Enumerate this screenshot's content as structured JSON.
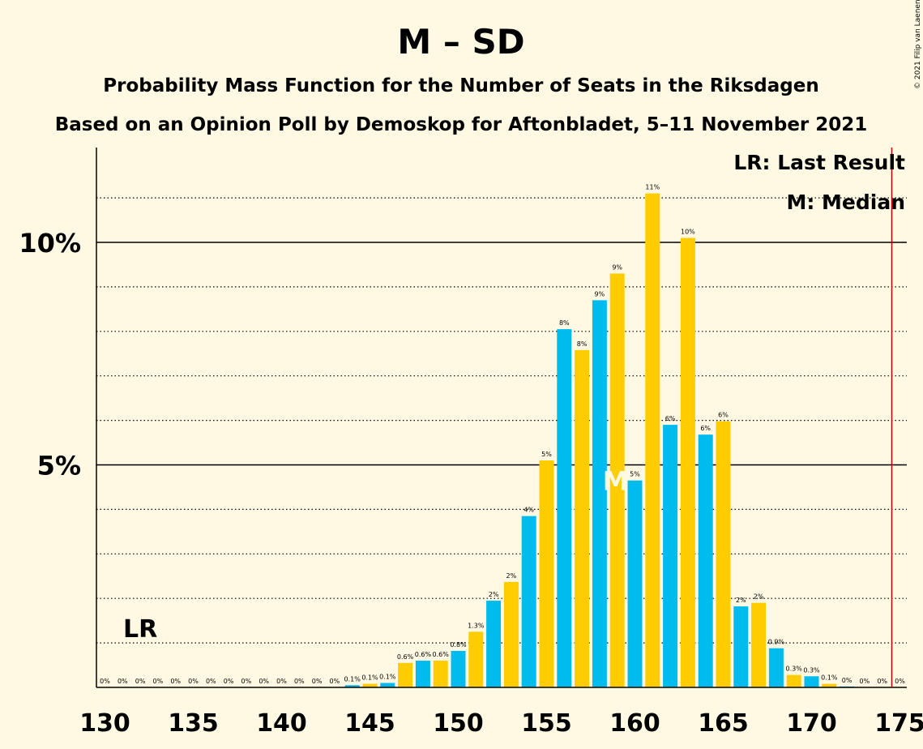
{
  "title": "M – SD",
  "subtitle1": "Probability Mass Function for the Number of Seats in the Riksdagen",
  "subtitle2": "Based on an Opinion Poll by Demoskop for Aftonbladet, 5–11 November 2021",
  "copyright": "© 2021 Filip van Laenen",
  "legend": {
    "lr": "LR: Last Result",
    "median": "M: Median"
  },
  "markers": {
    "lr_label": "LR",
    "median_label": "M"
  },
  "colors": {
    "background": "#FFF9E3",
    "blue": "#00BCEE",
    "yellow": "#FFCC00",
    "majority_line": "#C00000"
  },
  "chart_data": {
    "type": "bar",
    "xlabel": "",
    "ylabel": "",
    "xlim": [
      130,
      175
    ],
    "ylim": [
      0,
      12.1
    ],
    "x_ticks": [
      130,
      135,
      140,
      145,
      150,
      155,
      160,
      165,
      170,
      175
    ],
    "y_ticks": [
      {
        "value": 5,
        "label": "5%"
      },
      {
        "value": 10,
        "label": "10%"
      }
    ],
    "gridlines": [
      1,
      2,
      3,
      4,
      6,
      7,
      8,
      9,
      11
    ],
    "last_result": 132,
    "median": 159,
    "majority_line": 175,
    "bars": [
      {
        "x": 130,
        "value": 0,
        "label": "0%"
      },
      {
        "x": 131,
        "value": 0,
        "label": "0%"
      },
      {
        "x": 132,
        "value": 0,
        "label": "0%"
      },
      {
        "x": 133,
        "value": 0,
        "label": "0%"
      },
      {
        "x": 134,
        "value": 0,
        "label": "0%"
      },
      {
        "x": 135,
        "value": 0,
        "label": "0%"
      },
      {
        "x": 136,
        "value": 0,
        "label": "0%"
      },
      {
        "x": 137,
        "value": 0,
        "label": "0%"
      },
      {
        "x": 138,
        "value": 0,
        "label": "0%"
      },
      {
        "x": 139,
        "value": 0,
        "label": "0%"
      },
      {
        "x": 140,
        "value": 0,
        "label": "0%"
      },
      {
        "x": 141,
        "value": 0,
        "label": "0%"
      },
      {
        "x": 142,
        "value": 0,
        "label": "0%"
      },
      {
        "x": 143,
        "value": 0,
        "label": "0%"
      },
      {
        "x": 144,
        "value": 0.05,
        "label": "0.1%"
      },
      {
        "x": 145,
        "value": 0.08,
        "label": "0.1%"
      },
      {
        "x": 146,
        "value": 0.1,
        "label": "0.1%"
      },
      {
        "x": 147,
        "value": 0.55,
        "label": "0.6%"
      },
      {
        "x": 148,
        "value": 0.6,
        "label": "0.6%"
      },
      {
        "x": 149,
        "value": 0.6,
        "label": "0.6%"
      },
      {
        "x": 150,
        "value": 0.82,
        "label": "0.8%"
      },
      {
        "x": 151,
        "value": 1.25,
        "label": "1.3%"
      },
      {
        "x": 152,
        "value": 1.95,
        "label": "2%"
      },
      {
        "x": 153,
        "value": 2.37,
        "label": "2%"
      },
      {
        "x": 154,
        "value": 3.85,
        "label": "4%"
      },
      {
        "x": 155,
        "value": 5.1,
        "label": "5%"
      },
      {
        "x": 156,
        "value": 8.05,
        "label": "8%"
      },
      {
        "x": 157,
        "value": 7.58,
        "label": "8%"
      },
      {
        "x": 158,
        "value": 8.7,
        "label": "9%"
      },
      {
        "x": 159,
        "value": 9.3,
        "label": "9%"
      },
      {
        "x": 160,
        "value": 4.65,
        "label": "5%"
      },
      {
        "x": 161,
        "value": 11.1,
        "label": "11%"
      },
      {
        "x": 162,
        "value": 5.9,
        "label": "6%"
      },
      {
        "x": 163,
        "value": 10.1,
        "label": "10%"
      },
      {
        "x": 164,
        "value": 5.68,
        "label": "6%"
      },
      {
        "x": 165,
        "value": 5.98,
        "label": "6%"
      },
      {
        "x": 166,
        "value": 1.82,
        "label": "2%"
      },
      {
        "x": 167,
        "value": 1.9,
        "label": "2%"
      },
      {
        "x": 168,
        "value": 0.88,
        "label": "0.9%"
      },
      {
        "x": 169,
        "value": 0.28,
        "label": "0.3%"
      },
      {
        "x": 170,
        "value": 0.25,
        "label": "0.3%"
      },
      {
        "x": 171,
        "value": 0.08,
        "label": "0.1%"
      },
      {
        "x": 172,
        "value": 0.02,
        "label": "0%"
      },
      {
        "x": 173,
        "value": 0,
        "label": "0%"
      },
      {
        "x": 174,
        "value": 0,
        "label": "0%"
      },
      {
        "x": 175,
        "value": 0,
        "label": "0%"
      }
    ]
  }
}
